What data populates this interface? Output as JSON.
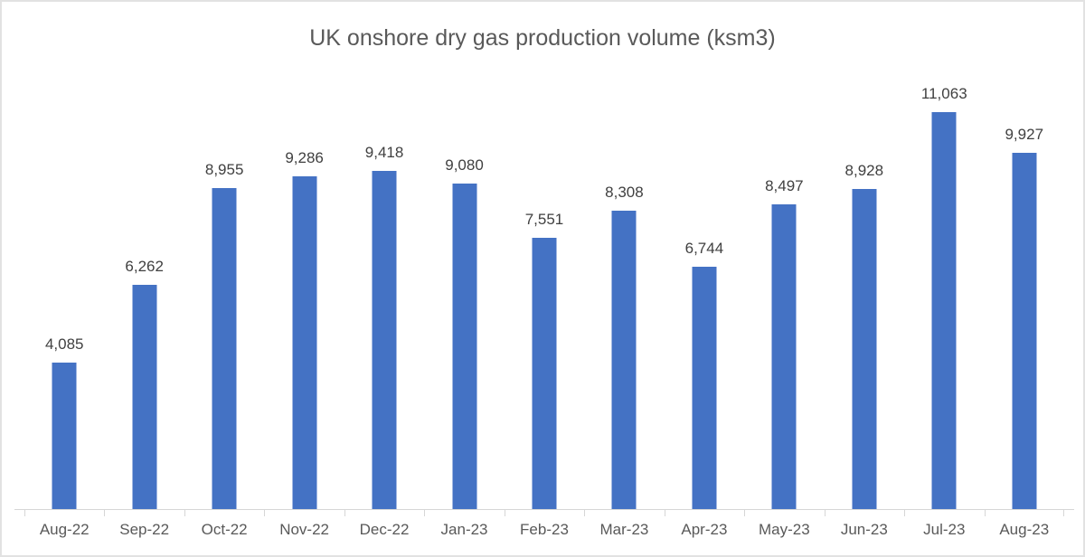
{
  "chart_data": {
    "type": "bar",
    "title": "UK onshore dry gas production volume (ksm3)",
    "categories": [
      "Aug-22",
      "Sep-22",
      "Oct-22",
      "Nov-22",
      "Dec-22",
      "Jan-23",
      "Feb-23",
      "Mar-23",
      "Apr-23",
      "May-23",
      "Jun-23",
      "Jul-23",
      "Aug-23"
    ],
    "values": [
      4085,
      6262,
      8955,
      9286,
      9418,
      9080,
      7551,
      8308,
      6744,
      8497,
      8928,
      11063,
      9927
    ],
    "xlabel": "",
    "ylabel": "",
    "ylim": [
      0,
      12000
    ],
    "grid": false,
    "legend": false,
    "data_labels": true,
    "colors": {
      "bar": "#4472C4",
      "title": "#595959",
      "value_label": "#404040",
      "axis_label": "#595959",
      "axis_line": "#D6D6D6",
      "frame_border": "#E2E2E2",
      "background": "#FFFFFF"
    }
  }
}
